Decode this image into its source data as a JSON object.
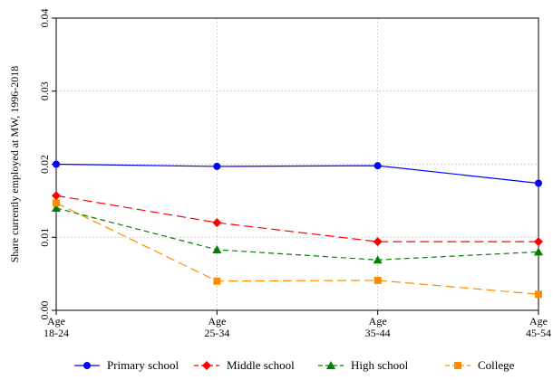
{
  "chart_data": {
    "type": "line",
    "ylabel": "Share currently employed at MW, 1996-2018",
    "xlabel": "",
    "categories": [
      "Age 18-24",
      "Age 25-34",
      "Age 35-44",
      "Age 45-54"
    ],
    "category_labels": [
      [
        "Age",
        "18-24"
      ],
      [
        "Age",
        "25-34"
      ],
      [
        "Age",
        "35-44"
      ],
      [
        "Age",
        "45-54"
      ]
    ],
    "ylim": [
      0,
      0.04
    ],
    "yticks": [
      "0.00",
      "0.01",
      "0.02",
      "0.03",
      "0.04"
    ],
    "grid": true,
    "legend_position": "bottom",
    "series": [
      {
        "name": "Primary school",
        "color": "#0000ff",
        "marker": "circle",
        "dash": "solid",
        "values": [
          0.02,
          0.0197,
          0.0198,
          0.0174
        ]
      },
      {
        "name": "Middle school",
        "color": "#ff0000",
        "marker": "diamond",
        "dash": "long-dash",
        "values": [
          0.0157,
          0.012,
          0.0094,
          0.0094
        ]
      },
      {
        "name": "High school",
        "color": "#008000",
        "marker": "triangle",
        "dash": "dash",
        "values": [
          0.014,
          0.0083,
          0.0069,
          0.008
        ]
      },
      {
        "name": "College",
        "color": "#ff8c00",
        "marker": "square",
        "dash": "long-dash",
        "values": [
          0.0147,
          0.004,
          0.0041,
          0.0022
        ]
      }
    ]
  }
}
